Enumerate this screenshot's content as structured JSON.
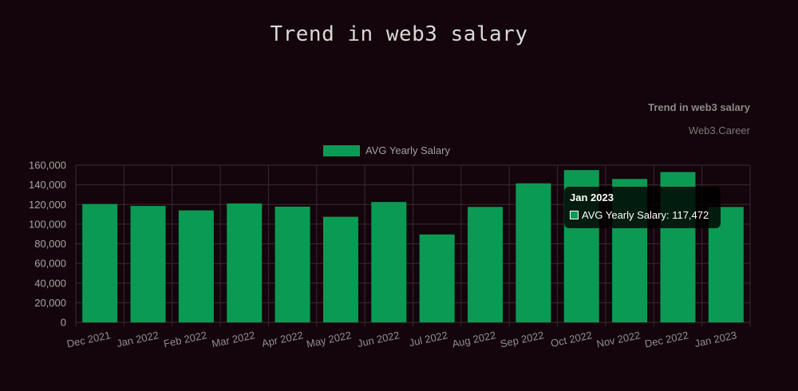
{
  "page_title": "Trend in web3 salary",
  "colors": {
    "background": "#14040b",
    "bar": "#0b9a54",
    "grid": "#3a2a30"
  },
  "chart_data": {
    "type": "bar",
    "title": "Trend in web3 salary",
    "subtitle": "Web3.Career",
    "xlabel": "",
    "ylabel": "",
    "ylim": [
      0,
      160000
    ],
    "yticks": [
      "0",
      "20,000",
      "40,000",
      "60,000",
      "80,000",
      "100,000",
      "120,000",
      "140,000",
      "160,000"
    ],
    "ytick_values": [
      0,
      20000,
      40000,
      60000,
      80000,
      100000,
      120000,
      140000,
      160000
    ],
    "legend": "top",
    "grid": true,
    "categories": [
      "Dec 2021",
      "Jan 2022",
      "Feb 2022",
      "Mar 2022",
      "Apr 2022",
      "May 2022",
      "Jun 2022",
      "Jul 2022",
      "Aug 2022",
      "Sep 2022",
      "Oct 2022",
      "Nov 2022",
      "Dec 2022",
      "Jan 2023"
    ],
    "series": [
      {
        "name": "AVG Yearly Salary",
        "values": [
          120500,
          118500,
          114000,
          121000,
          117800,
          107500,
          122500,
          89500,
          117500,
          141500,
          155000,
          146000,
          153000,
          117472
        ]
      }
    ]
  },
  "tooltip": {
    "title": "Jan 2023",
    "label": "AVG Yearly Salary: 117,472"
  }
}
